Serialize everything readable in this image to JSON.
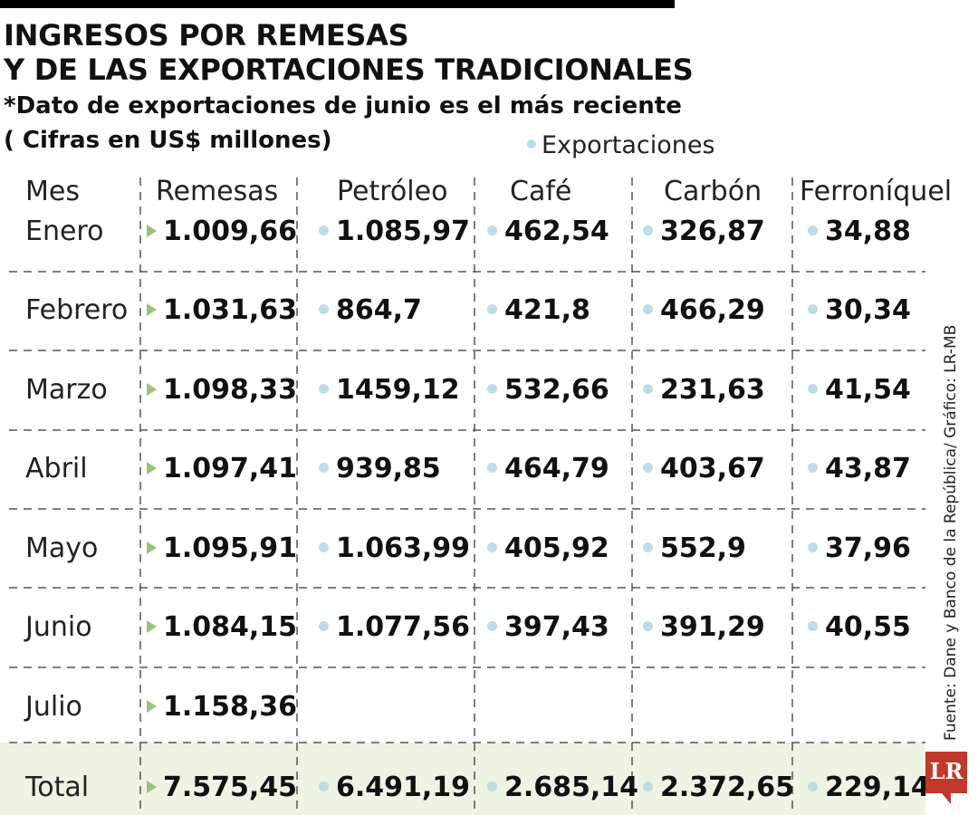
{
  "title_line1": "INGRESOS POR REMESAS",
  "title_line2": "Y DE LAS EXPORTACIONES TRADICIONALES",
  "subtitle": "*Dato de exportaciones de junio es el más reciente",
  "units": "( Cifras en US$ millones)",
  "legend_label": "Exportaciones",
  "source": "Fuente: Dane y Banco de la República/ Gráfico: LR-MB",
  "logo": "LR",
  "colors": {
    "remesas_marker": "#9cc27a",
    "export_marker": "#bcdde8",
    "total_band": "#eef3e4",
    "logo": "#c0392b"
  },
  "chart_data": {
    "type": "table",
    "columns": [
      "Mes",
      "Remesas",
      "Petróleo",
      "Café",
      "Carbón",
      "Ferroníquel"
    ],
    "rows": [
      [
        "Enero",
        "1.009,66",
        "1.085,97",
        "462,54",
        "326,87",
        "34,88"
      ],
      [
        "Febrero",
        "1.031,63",
        "864,7",
        "421,8",
        "466,29",
        "30,34"
      ],
      [
        "Marzo",
        "1.098,33",
        "1459,12",
        "532,66",
        "231,63",
        "41,54"
      ],
      [
        "Abril",
        "1.097,41",
        "939,85",
        "464,79",
        "403,67",
        "43,87"
      ],
      [
        "Mayo",
        "1.095,91",
        "1.063,99",
        "405,92",
        "552,9",
        "37,96"
      ],
      [
        "Junio",
        "1.084,15",
        "1.077,56",
        "397,43",
        "391,29",
        "40,55"
      ],
      [
        "Julio",
        "1.158,36",
        "",
        "",
        "",
        ""
      ],
      [
        "Total",
        "7.575,45",
        "6.491,19",
        "2.685,14",
        "2.372,65",
        "229,14"
      ]
    ]
  }
}
